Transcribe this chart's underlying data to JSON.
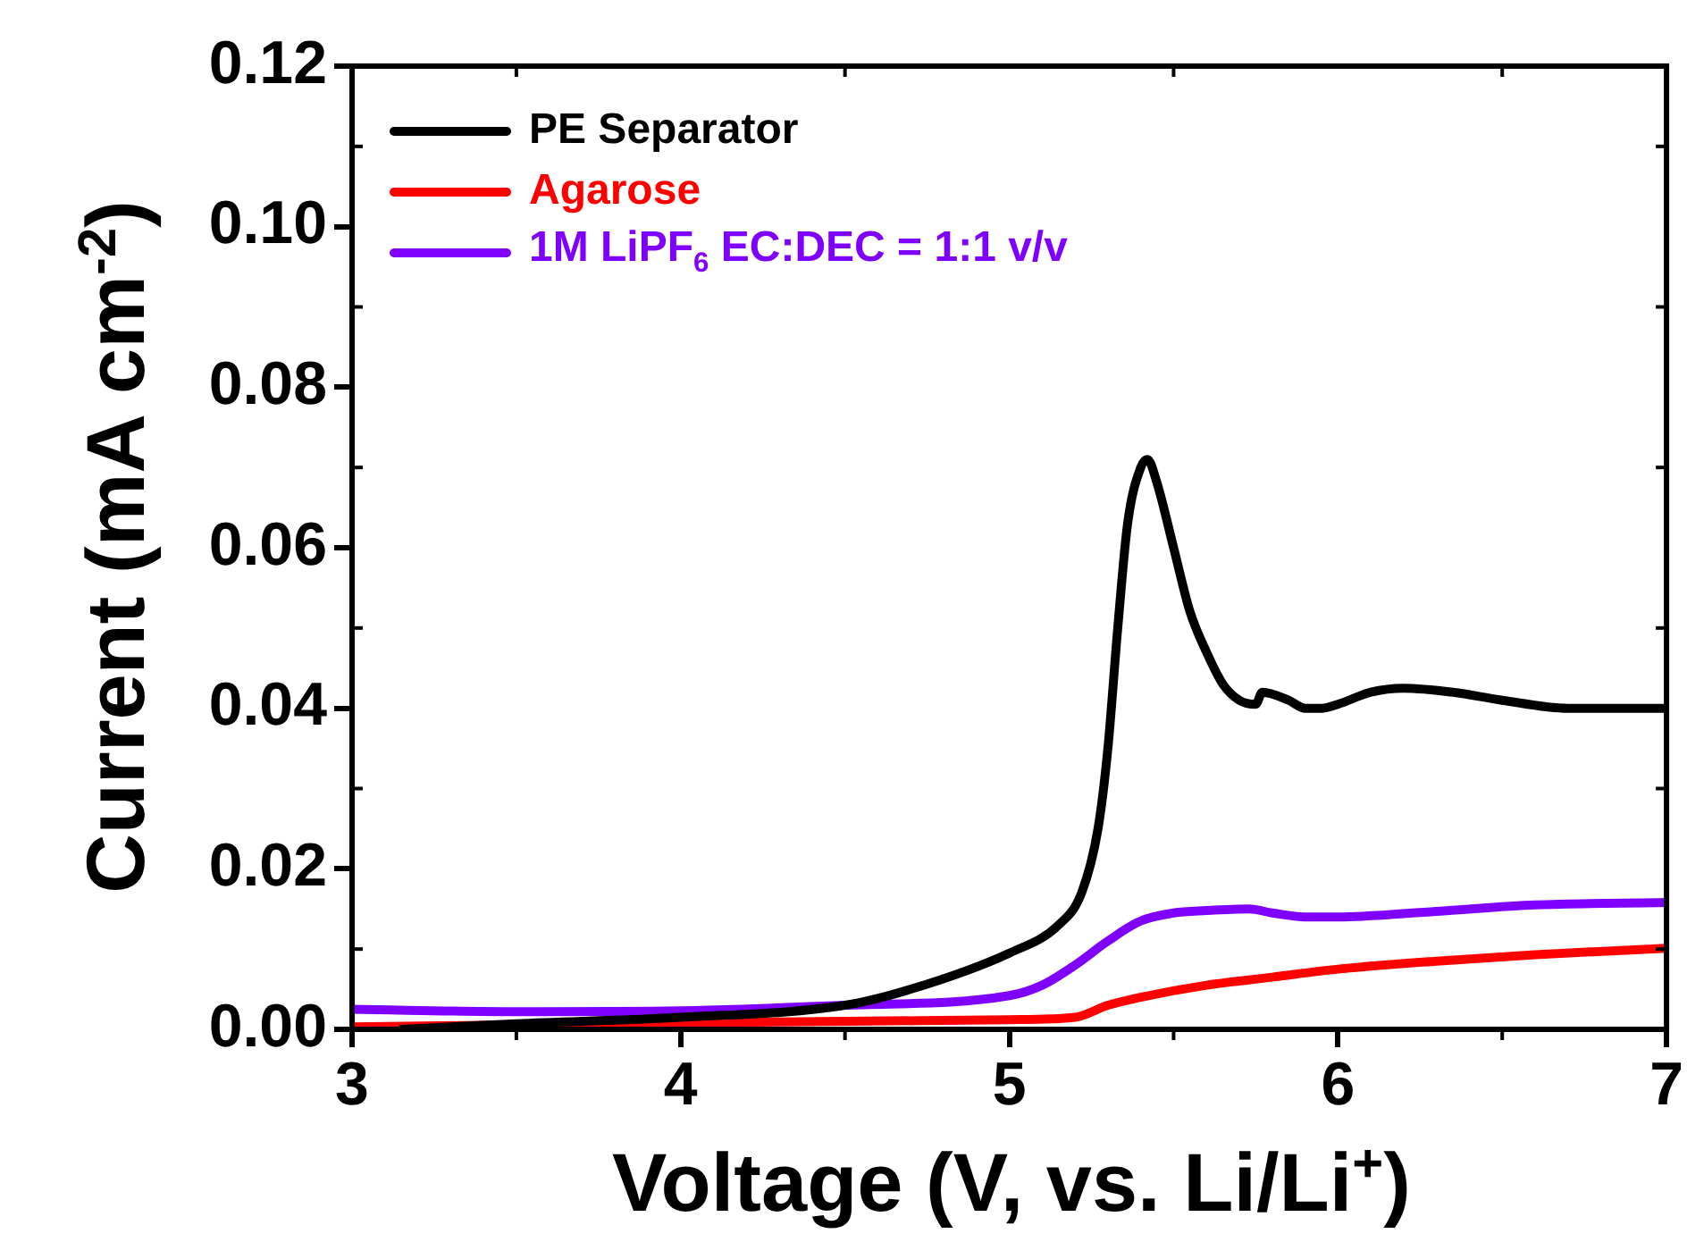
{
  "chart_data": {
    "type": "line",
    "xlabel": "Voltage (V, vs. Li/Li$^{+}$)",
    "ylabel": "Current (mA cm$^{-2}$)",
    "xlim": [
      3,
      7
    ],
    "xticks": [
      3,
      4,
      5,
      6,
      7
    ],
    "ylim": [
      0,
      0.12
    ],
    "yticks": [
      {
        "value": 0,
        "label": "0.00"
      },
      {
        "value": 0.02,
        "label": "0.02"
      },
      {
        "value": 0.04,
        "label": "0.04"
      },
      {
        "value": 0.06,
        "label": "0.06"
      },
      {
        "value": 0.08,
        "label": "0.08"
      },
      {
        "value": 0.1,
        "label": "0.10"
      },
      {
        "value": 0.12,
        "label": "0.12"
      }
    ],
    "grid": false,
    "legend": "top left",
    "marker": "none",
    "line_style": "solid",
    "series": [
      {
        "name": "PE Separator",
        "color": "#000000",
        "x": [
          3.15,
          3.5,
          4.0,
          4.5,
          4.7,
          5.0,
          5.15,
          5.22,
          5.27,
          5.3,
          5.33,
          5.36,
          5.4,
          5.42,
          5.45,
          5.5,
          5.55,
          5.6,
          5.65,
          5.7,
          5.75,
          5.77,
          5.85,
          5.9,
          5.95,
          6.0,
          6.1,
          6.2,
          6.35,
          6.5,
          6.7,
          7.0
        ],
        "values": [
          0,
          0.0007,
          0.0015,
          0.003,
          0.005,
          0.0095,
          0.013,
          0.017,
          0.025,
          0.035,
          0.05,
          0.063,
          0.07,
          0.071,
          0.068,
          0.06,
          0.052,
          0.047,
          0.043,
          0.041,
          0.0405,
          0.042,
          0.041,
          0.04,
          0.04,
          0.0405,
          0.042,
          0.0425,
          0.042,
          0.041,
          0.04,
          0.04
        ]
      },
      {
        "name": "Agarose",
        "color": "#ff0000",
        "x": [
          3,
          4,
          4.5,
          5,
          5.2,
          5.3,
          5.4,
          5.6,
          5.8,
          6.0,
          6.3,
          6.6,
          7
        ],
        "values": [
          0.0003,
          0.0008,
          0.001,
          0.0012,
          0.0015,
          0.003,
          0.004,
          0.0055,
          0.0065,
          0.0075,
          0.0085,
          0.0093,
          0.0101
        ]
      },
      {
        "name": "1M LiPF$_{6}$ EC:DEC = 1:1 v/v",
        "color": "#8000ff",
        "x": [
          3,
          3.5,
          4,
          4.5,
          5,
          5.1,
          5.2,
          5.3,
          5.4,
          5.5,
          5.6,
          5.73,
          5.8,
          5.9,
          6.0,
          6.3,
          6.6,
          7
        ],
        "values": [
          0.0025,
          0.0022,
          0.0023,
          0.003,
          0.0042,
          0.0055,
          0.008,
          0.011,
          0.0135,
          0.0145,
          0.0148,
          0.015,
          0.0145,
          0.014,
          0.014,
          0.0147,
          0.0155,
          0.0158
        ]
      }
    ]
  }
}
